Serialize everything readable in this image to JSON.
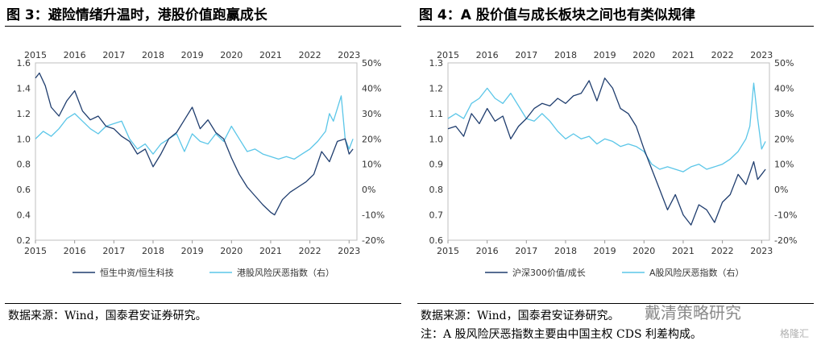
{
  "panels": [
    {
      "title": "图 3：避险情绪升温时，港股价值跑赢成长",
      "source": "数据来源：Wind，国泰君安证券研究。",
      "note": "",
      "chart_data": {
        "type": "line",
        "top_x_ticks": [
          "2015",
          "2016",
          "2017",
          "2018",
          "2019",
          "2020",
          "2021",
          "2022",
          "2023"
        ],
        "bottom_x_ticks": [
          "2015",
          "2016",
          "2017",
          "2018",
          "2019",
          "2020",
          "2021",
          "2022",
          "2023"
        ],
        "x_range": [
          2015.0,
          2023.2
        ],
        "y_left": {
          "range": [
            0.2,
            1.6
          ],
          "ticks": [
            "0.2",
            "0.4",
            "0.6",
            "0.8",
            "1.0",
            "1.2",
            "1.4",
            "1.6"
          ]
        },
        "y_right": {
          "range": [
            -0.2,
            0.5
          ],
          "ticks": [
            "-20%",
            "-10%",
            "0%",
            "10%",
            "20%",
            "30%",
            "40%",
            "50%"
          ]
        },
        "series": [
          {
            "name": "恒生中资/恒生科技",
            "axis": "left",
            "color": "#1f3d6e",
            "x": [
              2015.0,
              2015.1,
              2015.25,
              2015.4,
              2015.6,
              2015.8,
              2016.0,
              2016.2,
              2016.4,
              2016.6,
              2016.8,
              2017.0,
              2017.2,
              2017.4,
              2017.6,
              2017.8,
              2018.0,
              2018.2,
              2018.4,
              2018.6,
              2018.8,
              2019.0,
              2019.2,
              2019.4,
              2019.6,
              2019.8,
              2020.0,
              2020.2,
              2020.4,
              2020.6,
              2020.8,
              2021.0,
              2021.1,
              2021.3,
              2021.5,
              2021.7,
              2021.9,
              2022.1,
              2022.3,
              2022.5,
              2022.7,
              2022.9,
              2023.0,
              2023.1
            ],
            "y": [
              1.48,
              1.52,
              1.42,
              1.25,
              1.18,
              1.3,
              1.38,
              1.22,
              1.15,
              1.18,
              1.1,
              1.08,
              1.02,
              0.98,
              0.88,
              0.92,
              0.78,
              0.88,
              1.0,
              1.05,
              1.15,
              1.25,
              1.08,
              1.15,
              1.05,
              1.0,
              0.85,
              0.72,
              0.62,
              0.55,
              0.48,
              0.42,
              0.4,
              0.52,
              0.58,
              0.62,
              0.66,
              0.72,
              0.9,
              0.82,
              0.98,
              1.0,
              0.88,
              0.92
            ]
          },
          {
            "name": "港股风险厌恶指数（右）",
            "axis": "right",
            "color": "#5bc6e8",
            "x": [
              2015.0,
              2015.2,
              2015.4,
              2015.6,
              2015.8,
              2016.0,
              2016.2,
              2016.4,
              2016.6,
              2016.8,
              2017.0,
              2017.2,
              2017.4,
              2017.6,
              2017.8,
              2018.0,
              2018.2,
              2018.4,
              2018.6,
              2018.8,
              2019.0,
              2019.2,
              2019.4,
              2019.6,
              2019.8,
              2020.0,
              2020.2,
              2020.4,
              2020.6,
              2020.8,
              2021.0,
              2021.2,
              2021.4,
              2021.6,
              2021.8,
              2022.0,
              2022.2,
              2022.4,
              2022.5,
              2022.6,
              2022.7,
              2022.8,
              2022.9,
              2023.0,
              2023.1
            ],
            "y": [
              0.2,
              0.23,
              0.21,
              0.24,
              0.28,
              0.3,
              0.27,
              0.24,
              0.22,
              0.25,
              0.26,
              0.27,
              0.2,
              0.16,
              0.18,
              0.14,
              0.18,
              0.2,
              0.22,
              0.15,
              0.22,
              0.19,
              0.18,
              0.22,
              0.19,
              0.25,
              0.2,
              0.15,
              0.16,
              0.14,
              0.13,
              0.12,
              0.13,
              0.12,
              0.14,
              0.16,
              0.19,
              0.23,
              0.3,
              0.27,
              0.32,
              0.37,
              0.2,
              0.16,
              0.2
            ]
          }
        ]
      }
    },
    {
      "title": "图 4：A 股价值与成长板块之间也有类似规律",
      "source": "数据来源：Wind，国泰君安证券研究。",
      "note": "注：A 股风险厌恶指数主要由中国主权 CDS 利差构成。",
      "chart_data": {
        "type": "line",
        "top_x_ticks": [
          "2015",
          "2016",
          "2017",
          "2018",
          "2019",
          "2020",
          "2021",
          "2022",
          "2023"
        ],
        "bottom_x_ticks": [
          "2015",
          "2016",
          "2017",
          "2018",
          "2019",
          "2020",
          "2021",
          "2022",
          "2023"
        ],
        "x_range": [
          2015.0,
          2023.2
        ],
        "y_left": {
          "range": [
            0.6,
            1.3
          ],
          "ticks": [
            "0.6",
            "0.7",
            "0.8",
            "0.9",
            "1.0",
            "1.1",
            "1.2",
            "1.3"
          ]
        },
        "y_right": {
          "range": [
            -0.2,
            0.5
          ],
          "ticks": [
            "-20%",
            "-10%",
            "0%",
            "10%",
            "20%",
            "30%",
            "40%",
            "50%"
          ]
        },
        "series": [
          {
            "name": "沪深300价值/成长",
            "axis": "left",
            "color": "#1f3d6e",
            "x": [
              2015.0,
              2015.2,
              2015.4,
              2015.6,
              2015.8,
              2016.0,
              2016.2,
              2016.4,
              2016.6,
              2016.8,
              2017.0,
              2017.2,
              2017.4,
              2017.6,
              2017.8,
              2018.0,
              2018.2,
              2018.4,
              2018.6,
              2018.8,
              2019.0,
              2019.2,
              2019.4,
              2019.6,
              2019.8,
              2020.0,
              2020.2,
              2020.4,
              2020.6,
              2020.8,
              2021.0,
              2021.2,
              2021.4,
              2021.6,
              2021.8,
              2022.0,
              2022.2,
              2022.4,
              2022.6,
              2022.8,
              2022.9,
              2023.0,
              2023.1
            ],
            "y": [
              1.04,
              1.05,
              1.01,
              1.1,
              1.06,
              1.12,
              1.07,
              1.09,
              1.0,
              1.05,
              1.08,
              1.12,
              1.14,
              1.13,
              1.16,
              1.14,
              1.17,
              1.18,
              1.23,
              1.15,
              1.24,
              1.2,
              1.12,
              1.1,
              1.05,
              0.96,
              0.88,
              0.8,
              0.72,
              0.78,
              0.7,
              0.66,
              0.74,
              0.72,
              0.67,
              0.75,
              0.78,
              0.86,
              0.82,
              0.91,
              0.84,
              0.86,
              0.88
            ]
          },
          {
            "name": "A股风险厌恶指数（右）",
            "axis": "right",
            "color": "#5bc6e8",
            "x": [
              2015.0,
              2015.2,
              2015.4,
              2015.6,
              2015.8,
              2016.0,
              2016.2,
              2016.4,
              2016.6,
              2016.8,
              2017.0,
              2017.2,
              2017.4,
              2017.6,
              2017.8,
              2018.0,
              2018.2,
              2018.4,
              2018.6,
              2018.8,
              2019.0,
              2019.2,
              2019.4,
              2019.6,
              2019.8,
              2020.0,
              2020.2,
              2020.4,
              2020.6,
              2020.8,
              2021.0,
              2021.2,
              2021.4,
              2021.6,
              2021.8,
              2022.0,
              2022.2,
              2022.4,
              2022.6,
              2022.7,
              2022.8,
              2022.9,
              2023.0,
              2023.1
            ],
            "y": [
              0.28,
              0.3,
              0.28,
              0.34,
              0.36,
              0.4,
              0.36,
              0.34,
              0.38,
              0.33,
              0.28,
              0.27,
              0.3,
              0.27,
              0.23,
              0.2,
              0.22,
              0.2,
              0.21,
              0.18,
              0.2,
              0.19,
              0.17,
              0.18,
              0.17,
              0.15,
              0.1,
              0.08,
              0.09,
              0.08,
              0.07,
              0.09,
              0.1,
              0.08,
              0.09,
              0.1,
              0.12,
              0.15,
              0.2,
              0.25,
              0.42,
              0.28,
              0.16,
              0.19
            ]
          }
        ]
      }
    }
  ],
  "watermark": "戴清策略研究",
  "watermark_sub": "格隆汇"
}
